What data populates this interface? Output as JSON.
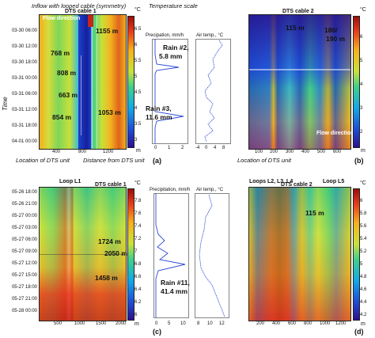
{
  "top": {
    "inflow_note": "Inflow with looped cable (symmetry)",
    "temperature_scale_note": "Temperature scale",
    "time_axis_label": "Time",
    "location_note_a": "Location of DTS unit",
    "distance_note": "Distance from DTS unit",
    "location_note_b": "Location of DTS unit"
  },
  "panel_a": {
    "letter": "(a)",
    "title": "DTS cable 1",
    "unit_c": "°C",
    "unit_m": "m",
    "flow_label": "Flow direction",
    "y_ticks": [
      "03-30 06:00",
      "03-30 12:00",
      "03-30 18:00",
      "03-31 00:00",
      "03-31 06:00",
      "03-31 12:00",
      "03-31 18:00",
      "04-01 00:00"
    ],
    "x_ticks": [
      "400",
      "800",
      "1200"
    ],
    "colorbar_ticks": [
      "6.5",
      "6",
      "5.5",
      "5",
      "4.5",
      "4",
      "3.5",
      "3"
    ],
    "annotations": [
      "1155 m",
      "768 m",
      "808 m",
      "663 m",
      "854 m",
      "1053 m"
    ],
    "precip": {
      "title": "Precipation, mm/h",
      "x_ticks": [
        "0",
        "1",
        "2"
      ],
      "rain_a": "Rain #2,",
      "rain_a_val": "5.8 mm",
      "rain_b": "Rain #3,",
      "rain_b_val": "11.6 mm"
    },
    "air": {
      "title": "Air temp., °C",
      "x_ticks": [
        "-4",
        "0",
        "4",
        "8"
      ]
    }
  },
  "panel_b": {
    "letter": "(b)",
    "title": "DTS cable 2",
    "unit_c": "°C",
    "unit_m": "m",
    "flow_label": "Flow direction",
    "x_ticks": [
      "100",
      "200",
      "300",
      "400",
      "500",
      "600"
    ],
    "colorbar_ticks": [
      "6",
      "5",
      "4",
      "3",
      "2"
    ],
    "annotations": [
      "115 m",
      "180/",
      "190 m"
    ]
  },
  "panel_c": {
    "letter": "(c)",
    "loop_label": "Loop L1",
    "title": "DTS cable 1",
    "unit_c": "°C",
    "unit_m": "m",
    "y_ticks": [
      "05-26 18:00",
      "05-26 21:00",
      "05-27 00:00",
      "05-27 03:00",
      "05-27 06:00",
      "05-27 09:00",
      "05-27 12:00",
      "05-27 15:00",
      "05-27 18:00",
      "05-27 21:00",
      "05-28 00:00"
    ],
    "x_ticks": [
      "500",
      "1000",
      "1500",
      "2000"
    ],
    "colorbar_ticks": [
      "7.8",
      "7.6",
      "7.4",
      "7.2",
      "7",
      "6.8",
      "6.6",
      "6.4",
      "6.2",
      "6"
    ],
    "annotations": [
      "1724 m",
      "2050 m",
      "1458 m"
    ],
    "precip": {
      "title": "Precipitation, mm/h",
      "x_ticks": [
        "0",
        "5",
        "10"
      ],
      "rain": "Rain #11,",
      "rain_val": "41.4 mm"
    },
    "air": {
      "title": "Air temp., °C",
      "x_ticks": [
        "8",
        "10",
        "12"
      ]
    }
  },
  "panel_d": {
    "letter": "(d)",
    "loops_label": "Loops L2, L3, L4",
    "loop5_label": "Loop L5",
    "title": "DTS cable 2",
    "unit_c": "°C",
    "unit_m": "m",
    "x_ticks": [
      "200",
      "400",
      "600",
      "800",
      "1000",
      "1200"
    ],
    "colorbar_ticks": [
      "6",
      "5.8",
      "5.6",
      "5.4",
      "5.2",
      "5",
      "4.8",
      "4.6",
      "4.4",
      "4.2"
    ],
    "annotations": [
      "115 m"
    ]
  },
  "colors": {
    "cold": "#2c0f8e",
    "mid": "#3fd08a",
    "warm": "#e8401c",
    "line": "#2e4bd6"
  }
}
